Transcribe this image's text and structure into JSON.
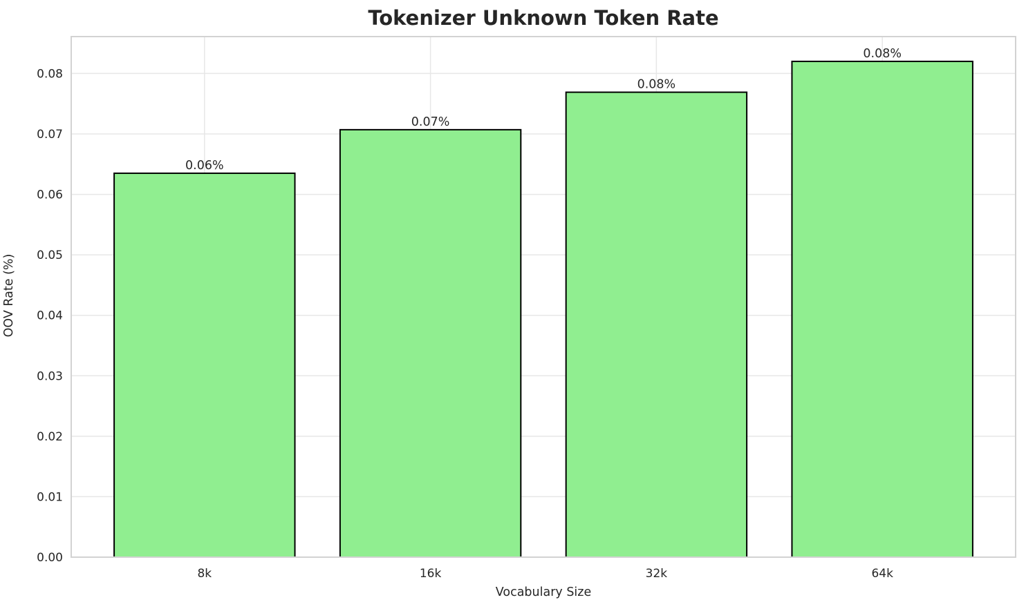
{
  "chart_data": {
    "type": "bar",
    "title": "Tokenizer Unknown Token Rate",
    "xlabel": "Vocabulary Size",
    "ylabel": "OOV Rate (%)",
    "categories": [
      "8k",
      "16k",
      "32k",
      "64k"
    ],
    "values": [
      0.0635,
      0.0707,
      0.0769,
      0.082
    ],
    "bar_labels": [
      "0.06%",
      "0.07%",
      "0.08%",
      "0.08%"
    ],
    "ylim": [
      0,
      0.0861
    ],
    "yticks": [
      0,
      0.01,
      0.02,
      0.03,
      0.04,
      0.05,
      0.06,
      0.07,
      0.08
    ],
    "ytick_labels": [
      "0.00",
      "0.01",
      "0.02",
      "0.03",
      "0.04",
      "0.05",
      "0.06",
      "0.07",
      "0.08"
    ],
    "grid": true,
    "legend_position": "none",
    "colors": {
      "bar_fill": "#90EE90",
      "bar_edge": "#000000",
      "grid": "#e7e7e7",
      "spine": "#d2d2d2",
      "text": "#262626",
      "background": "#ffffff"
    }
  }
}
